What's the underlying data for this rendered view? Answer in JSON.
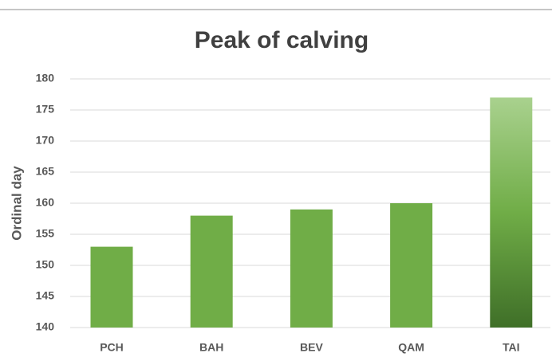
{
  "chart_data": {
    "type": "bar",
    "title": "Peak of calving",
    "y_label": "Ordinal day",
    "categories": [
      "PCH",
      "BAH",
      "BEV",
      "QAM",
      "TAI"
    ],
    "values": [
      153,
      158,
      159,
      160,
      177
    ],
    "color": "#70ad47",
    "gradient": {
      "index": 4,
      "colors": [
        "#a9d18e",
        "#70ad47",
        "#3f6f28"
      ]
    },
    "ylim": [
      140,
      180
    ],
    "yticks": [
      140,
      145,
      150,
      155,
      160,
      165,
      170,
      175,
      180
    ],
    "grid": true
  }
}
